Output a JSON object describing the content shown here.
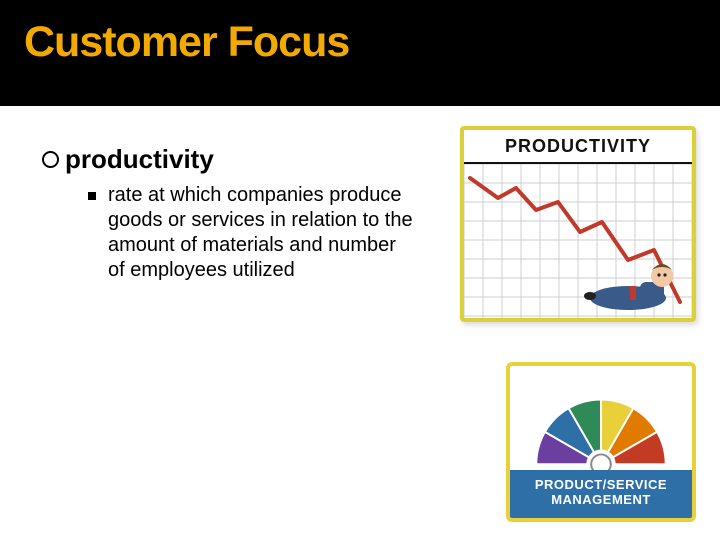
{
  "slide": {
    "title": "Customer Focus",
    "title_color": "#f2a900",
    "band_bg": "#000000",
    "term": "productivity",
    "definition": "rate at which companies produce goods or services in relation to the amount of materials and number of employees utilized"
  },
  "productivity_card": {
    "header": "PRODUCTIVITY",
    "border_color": "#dccf3a",
    "grid_color": "#cfcfcf",
    "line_color": "#c0392b",
    "line_points": "6,14 34,34 52,24 72,46 94,38 116,68 138,58 164,96 190,86 216,138",
    "man_suit": "#3a5a8a",
    "man_skin": "#f3c9a5",
    "man_hair": "#6b4a2b"
  },
  "wheel_card": {
    "border_color": "#e9cf3a",
    "label": "PRODUCT/SERVICE MANAGEMENT",
    "label_bg": "#2f6fa8",
    "slice_colors": [
      "#6b3fa0",
      "#2f6fa8",
      "#2e8b57",
      "#e9cf3a",
      "#e07b00",
      "#c23b22"
    ]
  }
}
